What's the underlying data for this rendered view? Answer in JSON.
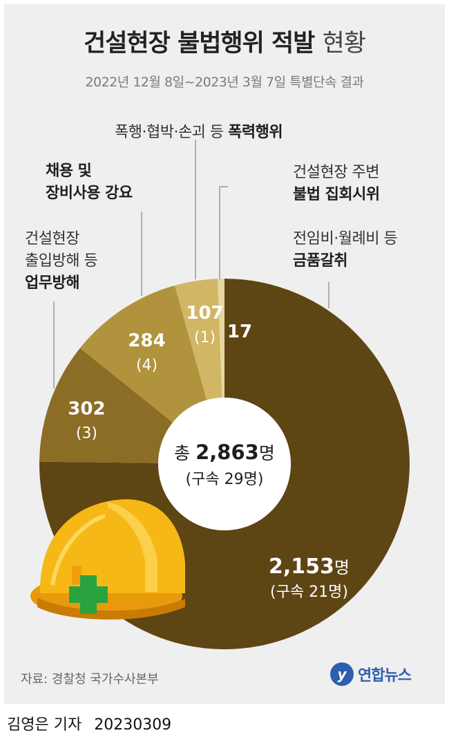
{
  "title_main": "건설현장 불법행위 적발",
  "title_tail": "현황",
  "subtitle": "2022년 12월 8일~2023년 3월 7일 특별단속 결과",
  "center": {
    "prefix": "총",
    "total": "2,863",
    "unit": "명",
    "arrest": "(구속 29명)"
  },
  "categories": {
    "violence": {
      "line1": "폭행·협박·손괴 등",
      "line1_bold": "폭력행위"
    },
    "assembly": {
      "line1": "건설현장 주변",
      "line2_bold": "불법 집회시위"
    },
    "money": {
      "line1": "전임비·월례비 등",
      "line2_bold": "금품갈취"
    },
    "hiring": {
      "line1_bold": "채용 및",
      "line2_bold": "장비사용 강요"
    },
    "obstruction": {
      "line1": "건설현장",
      "line2": "출입방해 등",
      "line3_bold": "업무방해"
    }
  },
  "chart_data": {
    "type": "pie",
    "donut": true,
    "total": 2863,
    "start": "12 o'clock, clockwise",
    "slices": [
      {
        "label": "금품갈취",
        "value": 2153,
        "value_label": "2,153명",
        "arrest_label": "(구속 21명)",
        "arrests": 21,
        "color": "#5e4514"
      },
      {
        "label": "업무방해",
        "value": 302,
        "value_label": "302",
        "arrest_label": "(3)",
        "arrests": 3,
        "color": "#8c6d25"
      },
      {
        "label": "장비사용 강요",
        "value": 284,
        "value_label": "284",
        "arrest_label": "(4)",
        "arrests": 4,
        "color": "#b1923d"
      },
      {
        "label": "폭력행위",
        "value": 107,
        "value_label": "107",
        "arrest_label": "(1)",
        "arrests": 1,
        "color": "#d1b666"
      },
      {
        "label": "불법 집회시위",
        "value": 17,
        "value_label": "17",
        "arrest_label": "",
        "arrests": 0,
        "color": "#e6d6a0"
      }
    ]
  },
  "source": "자료: 경찰청 국가수사본부",
  "logo": "연합뉴스",
  "logo_mark": "y",
  "reporter": "김영은 기자",
  "date": "20230309"
}
